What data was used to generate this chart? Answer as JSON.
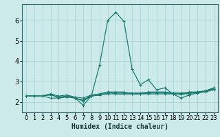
{
  "title": "",
  "xlabel": "Humidex (Indice chaleur)",
  "background_color": "#cceaea",
  "grid_color": "#aad4d4",
  "line_color": "#1a7a6e",
  "xlim": [
    -0.5,
    23.5
  ],
  "ylim": [
    1.5,
    6.8
  ],
  "yticks": [
    2,
    3,
    4,
    5,
    6
  ],
  "xticks": [
    0,
    1,
    2,
    3,
    4,
    5,
    6,
    7,
    8,
    9,
    10,
    11,
    12,
    13,
    14,
    15,
    16,
    17,
    18,
    19,
    20,
    21,
    22,
    23
  ],
  "series": [
    [
      2.3,
      2.3,
      2.3,
      2.4,
      2.2,
      2.3,
      2.2,
      1.85,
      2.3,
      3.8,
      6.0,
      6.4,
      5.95,
      3.6,
      2.85,
      3.1,
      2.6,
      2.7,
      2.4,
      2.2,
      2.35,
      2.45,
      2.55,
      2.7
    ],
    [
      2.3,
      2.3,
      2.3,
      2.4,
      2.2,
      2.3,
      2.2,
      2.1,
      2.35,
      2.4,
      2.5,
      2.4,
      2.4,
      2.4,
      2.4,
      2.45,
      2.45,
      2.45,
      2.45,
      2.45,
      2.5,
      2.5,
      2.55,
      2.65
    ],
    [
      2.3,
      2.3,
      2.3,
      2.2,
      2.2,
      2.25,
      2.2,
      2.05,
      2.3,
      2.35,
      2.4,
      2.4,
      2.4,
      2.4,
      2.4,
      2.4,
      2.4,
      2.4,
      2.4,
      2.4,
      2.45,
      2.45,
      2.5,
      2.6
    ],
    [
      2.3,
      2.3,
      2.3,
      2.4,
      2.3,
      2.35,
      2.25,
      2.2,
      2.35,
      2.4,
      2.5,
      2.5,
      2.5,
      2.45,
      2.45,
      2.5,
      2.5,
      2.5,
      2.45,
      2.4,
      2.45,
      2.5,
      2.55,
      2.7
    ],
    [
      2.3,
      2.3,
      2.3,
      2.35,
      2.25,
      2.3,
      2.2,
      2.1,
      2.3,
      2.35,
      2.45,
      2.45,
      2.45,
      2.42,
      2.42,
      2.45,
      2.45,
      2.45,
      2.42,
      2.38,
      2.42,
      2.48,
      2.52,
      2.65
    ]
  ],
  "xlabel_fontsize": 7,
  "tick_fontsize": 6
}
